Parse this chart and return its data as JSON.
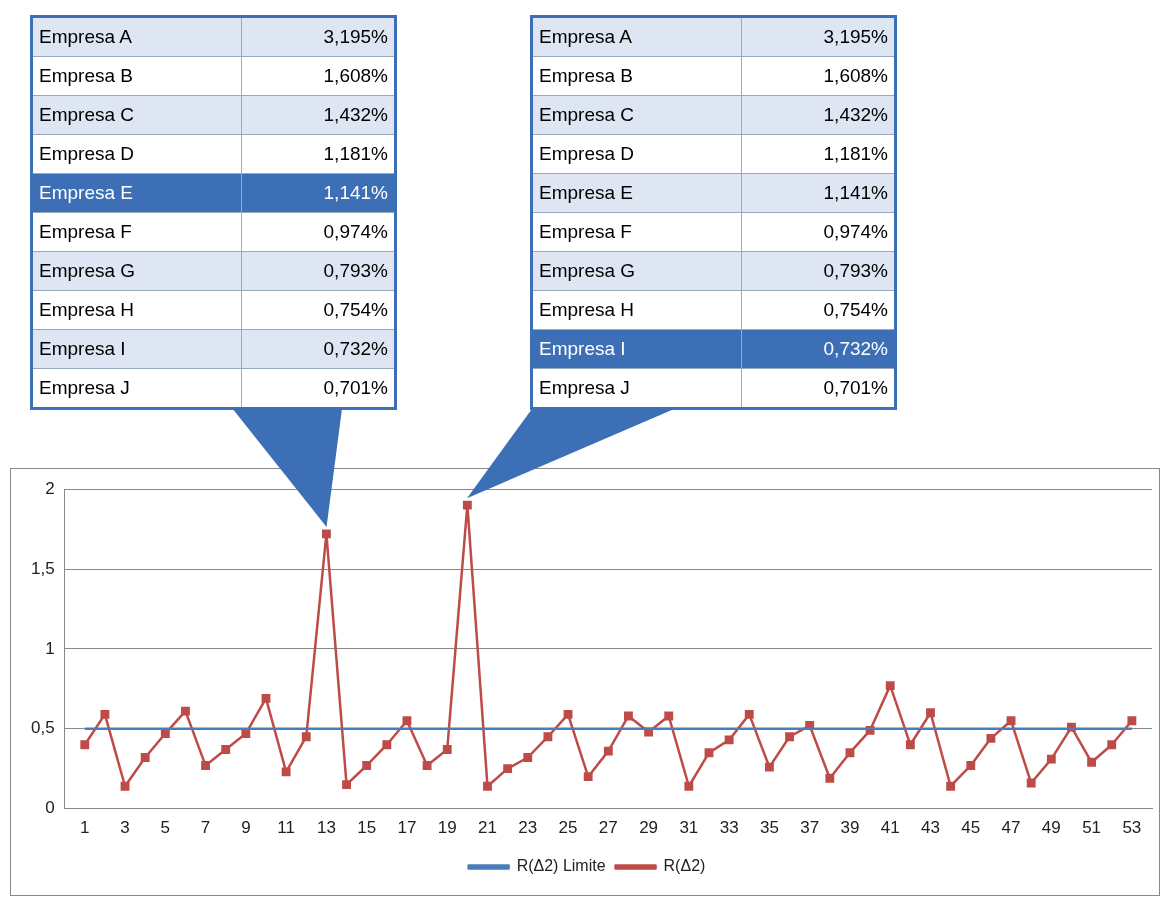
{
  "chart_data": {
    "type": "line",
    "x": [
      1,
      2,
      3,
      4,
      5,
      6,
      7,
      8,
      9,
      10,
      11,
      12,
      13,
      14,
      15,
      16,
      17,
      18,
      19,
      20,
      21,
      22,
      23,
      24,
      25,
      26,
      27,
      28,
      29,
      30,
      31,
      32,
      33,
      34,
      35,
      36,
      37,
      38,
      39,
      40,
      41,
      42,
      43,
      44,
      45,
      46,
      47,
      48,
      49,
      50,
      51,
      52,
      53
    ],
    "series": [
      {
        "name": "R(Δ2) Limite",
        "color": "#4a7ebb",
        "marker": "none",
        "values": [
          0.5,
          0.5,
          0.5,
          0.5,
          0.5,
          0.5,
          0.5,
          0.5,
          0.5,
          0.5,
          0.5,
          0.5,
          0.5,
          0.5,
          0.5,
          0.5,
          0.5,
          0.5,
          0.5,
          0.5,
          0.5,
          0.5,
          0.5,
          0.5,
          0.5,
          0.5,
          0.5,
          0.5,
          0.5,
          0.5,
          0.5,
          0.5,
          0.5,
          0.5,
          0.5,
          0.5,
          0.5,
          0.5,
          0.5,
          0.5,
          0.5,
          0.5,
          0.5,
          0.5,
          0.5,
          0.5,
          0.5,
          0.5,
          0.5,
          0.5,
          0.5,
          0.5,
          0.5
        ]
      },
      {
        "name": "R(Δ2)",
        "color": "#be4b48",
        "values": [
          0.4,
          0.59,
          0.14,
          0.32,
          0.47,
          0.61,
          0.27,
          0.37,
          0.47,
          0.69,
          0.23,
          0.45,
          1.72,
          0.15,
          0.27,
          0.4,
          0.55,
          0.27,
          0.37,
          1.9,
          0.14,
          0.25,
          0.32,
          0.45,
          0.59,
          0.2,
          0.36,
          0.58,
          0.48,
          0.58,
          0.14,
          0.35,
          0.43,
          0.59,
          0.26,
          0.45,
          0.52,
          0.19,
          0.35,
          0.49,
          0.77,
          0.4,
          0.6,
          0.14,
          0.27,
          0.44,
          0.55,
          0.16,
          0.31,
          0.51,
          0.29,
          0.4,
          0.55
        ]
      }
    ],
    "xlim": [
      0,
      54
    ],
    "xticks": [
      1,
      3,
      5,
      7,
      9,
      11,
      13,
      15,
      17,
      19,
      21,
      23,
      25,
      27,
      29,
      31,
      33,
      35,
      37,
      39,
      41,
      43,
      45,
      47,
      49,
      51,
      53
    ],
    "ylim": [
      0,
      2
    ],
    "yticks": [
      0,
      {
        "value": 0.5,
        "label": "0,5"
      },
      1,
      {
        "value": 1.5,
        "label": "1,5"
      },
      2
    ],
    "grid": "y",
    "legend": "bottom",
    "marker": "square",
    "line_style": "solid",
    "annotations": [
      "Empresa A",
      "3,195%",
      "Empresa B",
      "1,608%",
      "Empresa C",
      "1,432%",
      "Empresa D",
      "1,181%",
      "Empresa E",
      "1,141%",
      "Empresa F",
      "0,974%",
      "Empresa G",
      "0,793%",
      "Empresa H",
      "0,754%",
      "Empresa I",
      "0,732%",
      "Empresa J",
      "0,701%",
      "Empresa A",
      "3,195%",
      "Empresa B",
      "1,608%",
      "Empresa C",
      "1,432%",
      "Empresa D",
      "1,181%",
      "Empresa E",
      "1,141%",
      "Empresa F",
      "0,974%",
      "Empresa G",
      "0,793%",
      "Empresa H",
      "0,754%",
      "Empresa I",
      "0,732%",
      "Empresa J",
      "0,701%"
    ]
  }
}
